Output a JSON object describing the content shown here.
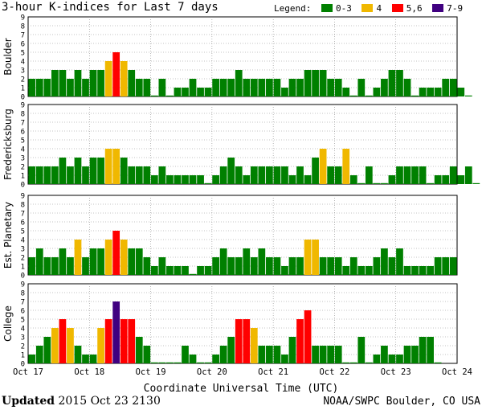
{
  "chart_data": {
    "type": "bar",
    "title": "3-hour K-indices for Last 7 days",
    "legend": {
      "label": "Legend:",
      "items": [
        {
          "label": "0-3",
          "color": "#008000"
        },
        {
          "label": "4",
          "color": "#f0b800"
        },
        {
          "label": "5,6",
          "color": "#ff0000"
        },
        {
          "label": "7-9",
          "color": "#400080"
        }
      ]
    },
    "xlabel": "Coordinate Universal Time (UTC)",
    "x_ticks": [
      "Oct 17",
      "Oct 18",
      "Oct 19",
      "Oct 20",
      "Oct 21",
      "Oct 22",
      "Oct 23",
      "Oct 24"
    ],
    "ylim": [
      0,
      9
    ],
    "y_ticks": [
      "0",
      "1",
      "2",
      "3",
      "4",
      "5",
      "6",
      "7",
      "8",
      "9"
    ],
    "interval_hours": 3,
    "panels": [
      {
        "name": "Boulder",
        "values": [
          2,
          2,
          2,
          3,
          3,
          2,
          3,
          2,
          3,
          3,
          4,
          5,
          4,
          3,
          2,
          2,
          0,
          2,
          0,
          1,
          1,
          2,
          1,
          1,
          2,
          2,
          2,
          3,
          2,
          2,
          2,
          2,
          2,
          1,
          2,
          2,
          3,
          3,
          3,
          2,
          2,
          1,
          0,
          2,
          0,
          1,
          2,
          3,
          3,
          2,
          0,
          1,
          1,
          1,
          2,
          2,
          1,
          0
        ]
      },
      {
        "name": "Fredericksburg",
        "values": [
          2,
          2,
          2,
          2,
          3,
          2,
          3,
          2,
          3,
          3,
          4,
          4,
          3,
          2,
          2,
          2,
          1,
          2,
          1,
          1,
          1,
          1,
          1,
          0,
          1,
          2,
          3,
          2,
          1,
          2,
          2,
          2,
          2,
          2,
          1,
          2,
          1,
          3,
          4,
          2,
          2,
          4,
          1,
          0,
          2,
          0,
          0,
          1,
          2,
          2,
          2,
          2,
          0,
          1,
          1,
          2,
          1,
          2,
          0
        ]
      },
      {
        "name": "Est. Planetary",
        "values": [
          2,
          3,
          2,
          2,
          3,
          2,
          4,
          2,
          3,
          3,
          4,
          5,
          4,
          3,
          3,
          2,
          1,
          2,
          1,
          1,
          1,
          0,
          1,
          1,
          2,
          3,
          2,
          2,
          3,
          2,
          3,
          2,
          2,
          1,
          2,
          2,
          4,
          4,
          2,
          2,
          2,
          1,
          2,
          1,
          1,
          2,
          3,
          2,
          3,
          1,
          1,
          1,
          1,
          2,
          2,
          2
        ]
      },
      {
        "name": "College",
        "values": [
          1,
          2,
          3,
          4,
          5,
          4,
          2,
          1,
          1,
          4,
          5,
          7,
          5,
          5,
          3,
          2,
          0,
          0,
          0,
          0,
          2,
          1,
          0,
          0,
          1,
          2,
          3,
          5,
          5,
          4,
          2,
          2,
          2,
          1,
          3,
          5,
          6,
          2,
          2,
          2,
          2,
          0,
          0,
          3,
          0,
          1,
          2,
          1,
          1,
          2,
          2,
          3,
          3,
          0
        ]
      }
    ]
  },
  "footer": {
    "updated_label": "Updated",
    "updated_value": "2015 Oct 23 2130",
    "source": "NOAA/SWPC Boulder, CO USA"
  }
}
